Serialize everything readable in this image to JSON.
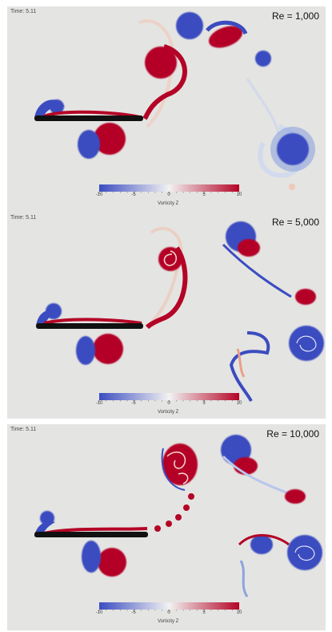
{
  "panels": [
    {
      "time_label": "Time: 5.11",
      "re_label": "Re = 1,000"
    },
    {
      "time_label": "Time: 5.11",
      "re_label": "Re = 5,000"
    },
    {
      "time_label": "Time: 5.11",
      "re_label": "Re = 10,000"
    }
  ],
  "colorbar": {
    "title": "Vorticity Z",
    "ticks": [
      "-10",
      "-5",
      "0",
      "5",
      "10"
    ],
    "colors": {
      "negative": "#3b4cc0",
      "neutral": "#f2f2f2",
      "positive": "#b40426"
    }
  }
}
